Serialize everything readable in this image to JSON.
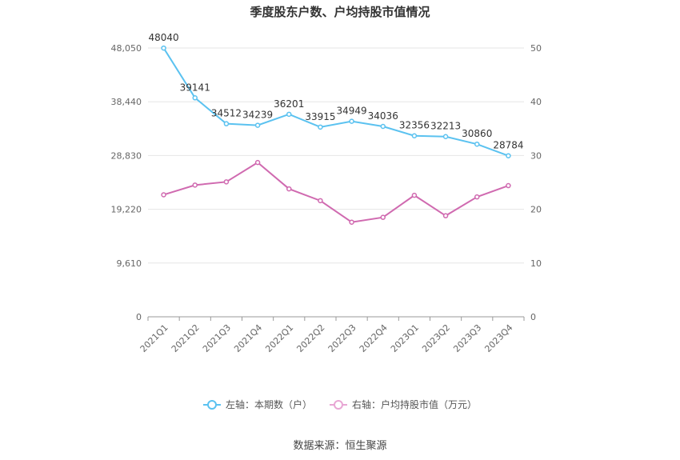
{
  "chart_data": {
    "type": "line",
    "title": "季度股东户数、户均持股市值情况",
    "categories": [
      "2021Q1",
      "2021Q2",
      "2021Q3",
      "2021Q4",
      "2022Q1",
      "2022Q2",
      "2022Q3",
      "2022Q4",
      "2023Q1",
      "2023Q2",
      "2023Q3",
      "2023Q4"
    ],
    "left_axis": {
      "ticks": [
        "0",
        "9,610",
        "19,220",
        "28,830",
        "38,440",
        "48,050"
      ],
      "min": 0,
      "max": 48050
    },
    "right_axis": {
      "ticks": [
        "0",
        "10",
        "20",
        "30",
        "40",
        "50"
      ],
      "min": 0,
      "max": 50
    },
    "series": [
      {
        "name": "左轴：本期数（户）",
        "axis": "left",
        "color": "#5bc2f0",
        "values": [
          48040,
          39141,
          34512,
          34239,
          36201,
          33915,
          34949,
          34036,
          32356,
          32213,
          30860,
          28784
        ],
        "labels": [
          "48040",
          "39141",
          "34512",
          "34239",
          "36201",
          "33915",
          "34949",
          "34036",
          "32356",
          "32213",
          "30860",
          "28784"
        ]
      },
      {
        "name": "右轴：户均持股市值（万元）",
        "axis": "right",
        "color": "#d06ab0",
        "values": [
          22.7,
          24.5,
          25.1,
          28.7,
          23.8,
          21.6,
          17.6,
          18.5,
          22.6,
          18.8,
          22.3,
          24.4
        ]
      }
    ],
    "grid": true,
    "legend_position": "bottom"
  },
  "source": "数据来源：恒生聚源"
}
